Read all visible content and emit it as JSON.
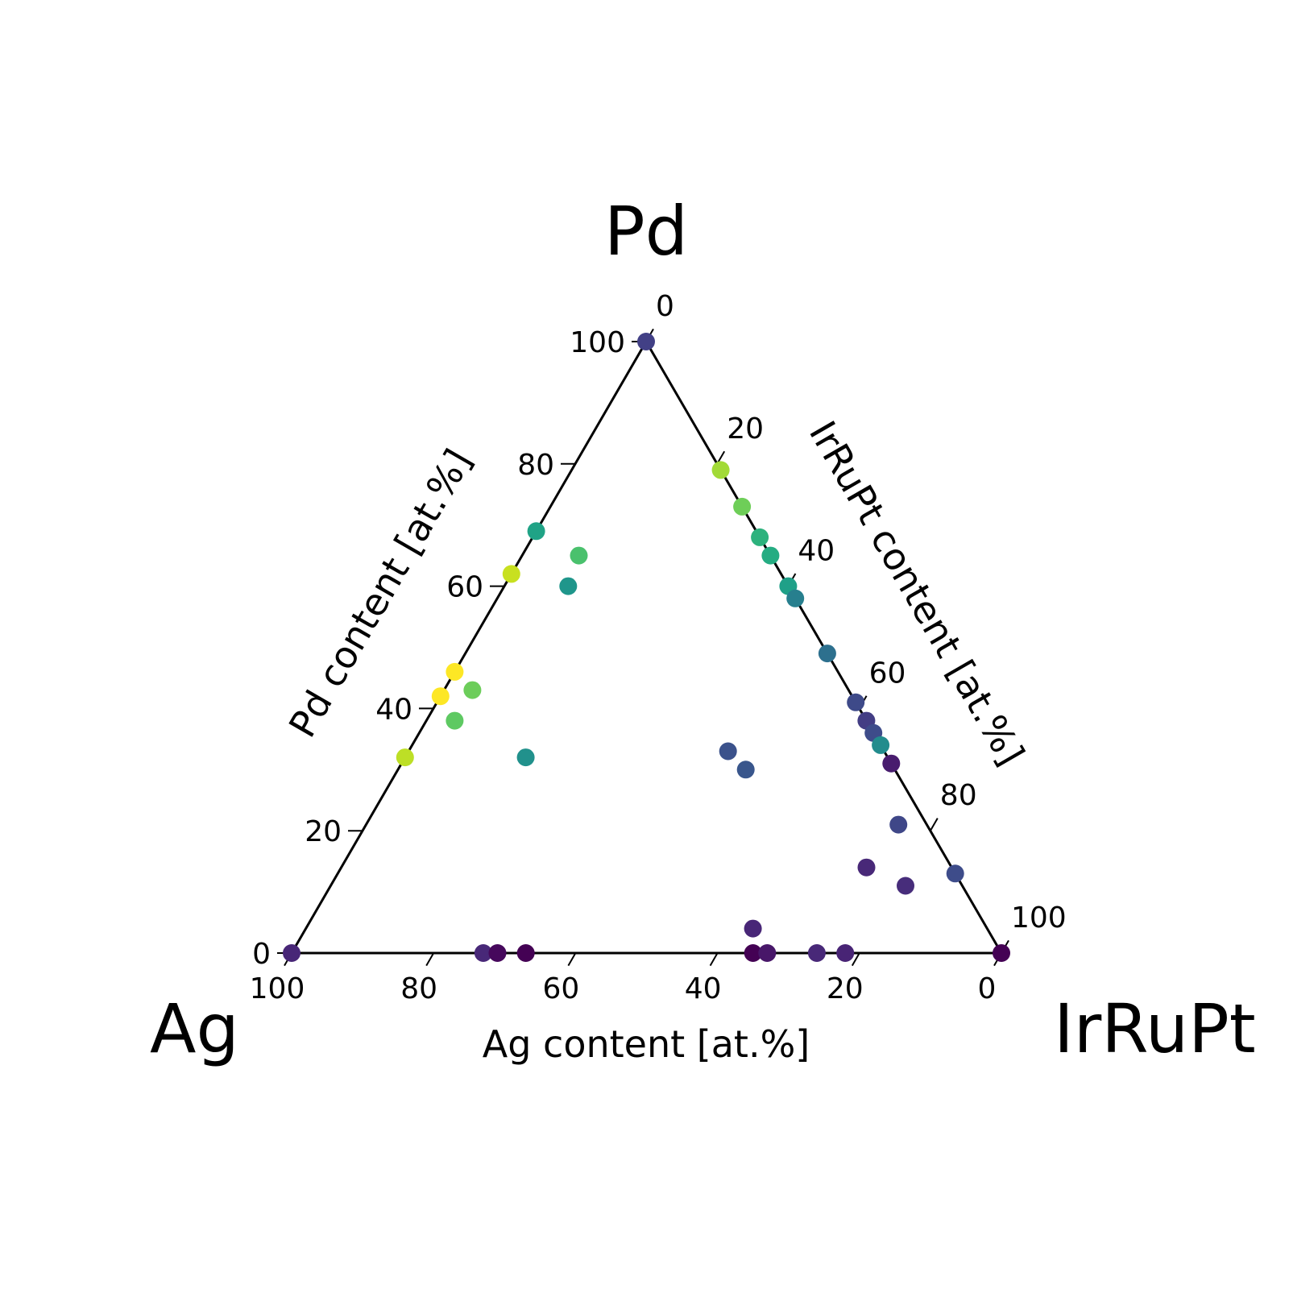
{
  "chart_data": {
    "type": "scatter",
    "plot_kind": "ternary",
    "vertices": {
      "top": "Pd",
      "left": "Ag",
      "right": "IrRuPt"
    },
    "axes": {
      "ag": {
        "label": "Ag content [at.%]",
        "range": [
          0,
          100
        ],
        "ticks": [
          "0",
          "20",
          "40",
          "60",
          "80",
          "100"
        ]
      },
      "pd": {
        "label": "Pd content [at.%]",
        "range": [
          0,
          100
        ],
        "ticks": [
          "0",
          "20",
          "40",
          "60",
          "80",
          "100"
        ]
      },
      "irrupt": {
        "label": "IrRuPt content [at.%]",
        "range": [
          0,
          100
        ],
        "ticks": [
          "0",
          "20",
          "40",
          "60",
          "80",
          "100"
        ]
      }
    },
    "grid": false,
    "colormap": "viridis",
    "points": [
      {
        "ag": 0,
        "pd": 100,
        "irrupt": 0,
        "color": "#424086"
      },
      {
        "ag": 0,
        "pd": 79,
        "irrupt": 21,
        "color": "#a2da37"
      },
      {
        "ag": 0,
        "pd": 73,
        "irrupt": 27,
        "color": "#6ece58"
      },
      {
        "ag": 0,
        "pd": 68,
        "irrupt": 32,
        "color": "#2db27d"
      },
      {
        "ag": 0,
        "pd": 65,
        "irrupt": 35,
        "color": "#25ac82"
      },
      {
        "ag": 0,
        "pd": 60,
        "irrupt": 40,
        "color": "#1fa088"
      },
      {
        "ag": 0,
        "pd": 58,
        "irrupt": 42,
        "color": "#277f8e"
      },
      {
        "ag": 0,
        "pd": 49,
        "irrupt": 51,
        "color": "#2d708e"
      },
      {
        "ag": 0,
        "pd": 41,
        "irrupt": 59,
        "color": "#3e4a89"
      },
      {
        "ag": 0,
        "pd": 38,
        "irrupt": 62,
        "color": "#433d84"
      },
      {
        "ag": 0,
        "pd": 36,
        "irrupt": 64,
        "color": "#3e4c8a"
      },
      {
        "ag": 0,
        "pd": 34,
        "irrupt": 66,
        "color": "#228c8d"
      },
      {
        "ag": 0,
        "pd": 31,
        "irrupt": 69,
        "color": "#481c6e"
      },
      {
        "ag": 0,
        "pd": 13,
        "irrupt": 87,
        "color": "#3e4c8a"
      },
      {
        "ag": 0,
        "pd": 0,
        "irrupt": 100,
        "color": "#440154"
      },
      {
        "ag": 38,
        "pd": 62,
        "irrupt": 0,
        "color": "#c8e020"
      },
      {
        "ag": 54,
        "pd": 46,
        "irrupt": 0,
        "color": "#fde725"
      },
      {
        "ag": 58,
        "pd": 42,
        "irrupt": 0,
        "color": "#fde725"
      },
      {
        "ag": 68,
        "pd": 32,
        "irrupt": 0,
        "color": "#bddf26"
      },
      {
        "ag": 100,
        "pd": 0,
        "irrupt": 0,
        "color": "#482677"
      },
      {
        "ag": 73,
        "pd": 0,
        "irrupt": 27,
        "color": "#482878"
      },
      {
        "ag": 71,
        "pd": 0,
        "irrupt": 29,
        "color": "#46085c"
      },
      {
        "ag": 67,
        "pd": 0,
        "irrupt": 33,
        "color": "#440154"
      },
      {
        "ag": 35,
        "pd": 0,
        "irrupt": 65,
        "color": "#440154"
      },
      {
        "ag": 33,
        "pd": 0,
        "irrupt": 67,
        "color": "#481769"
      },
      {
        "ag": 26,
        "pd": 0,
        "irrupt": 74,
        "color": "#482878"
      },
      {
        "ag": 22,
        "pd": 0,
        "irrupt": 78,
        "color": "#482475"
      },
      {
        "ag": 31,
        "pd": 69,
        "irrupt": 0,
        "color": "#20a386"
      },
      {
        "ag": 27,
        "pd": 65,
        "irrupt": 8,
        "color": "#4ac16d"
      },
      {
        "ag": 31,
        "pd": 60,
        "irrupt": 9,
        "color": "#1f968b"
      },
      {
        "ag": 53,
        "pd": 43,
        "irrupt": 4,
        "color": "#6ccd5a"
      },
      {
        "ag": 58,
        "pd": 38,
        "irrupt": 4,
        "color": "#5ec962"
      },
      {
        "ag": 51,
        "pd": 32,
        "irrupt": 17,
        "color": "#21918c"
      },
      {
        "ag": 22,
        "pd": 33,
        "irrupt": 45,
        "color": "#3b528b"
      },
      {
        "ag": 21,
        "pd": 30,
        "irrupt": 49,
        "color": "#39568c"
      },
      {
        "ag": 4,
        "pd": 21,
        "irrupt": 75,
        "color": "#3f4788"
      },
      {
        "ag": 12,
        "pd": 14,
        "irrupt": 74,
        "color": "#482878"
      },
      {
        "ag": 8,
        "pd": 11,
        "irrupt": 81,
        "color": "#472d7b"
      },
      {
        "ag": 33,
        "pd": 4,
        "irrupt": 63,
        "color": "#482677"
      }
    ]
  }
}
